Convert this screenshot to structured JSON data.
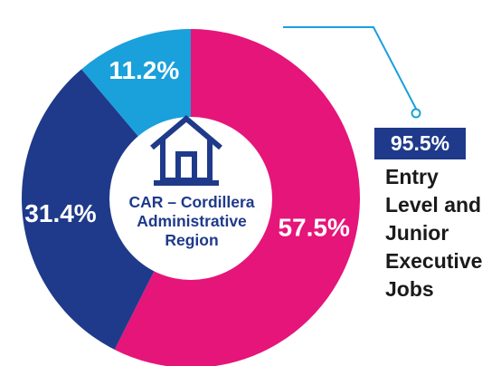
{
  "chart_data": {
    "type": "pie",
    "donut": true,
    "slices": [
      {
        "label": "57.5%",
        "value": 57.5,
        "color": "#e5157a"
      },
      {
        "label": "31.4%",
        "value": 31.4,
        "color": "#1f3a8a"
      },
      {
        "label": "11.2%",
        "value": 11.2,
        "color": "#1aa0db"
      }
    ],
    "center_title": [
      "CAR – Cordillera",
      "Administrative",
      "Region"
    ],
    "center_icon": "house-icon",
    "callout": {
      "value": "95.5%",
      "text": [
        "Entry",
        "Level and",
        "Junior",
        "Executive",
        "Jobs"
      ],
      "line_color": "#1aa0db",
      "badge_color": "#1f3a8a"
    }
  }
}
